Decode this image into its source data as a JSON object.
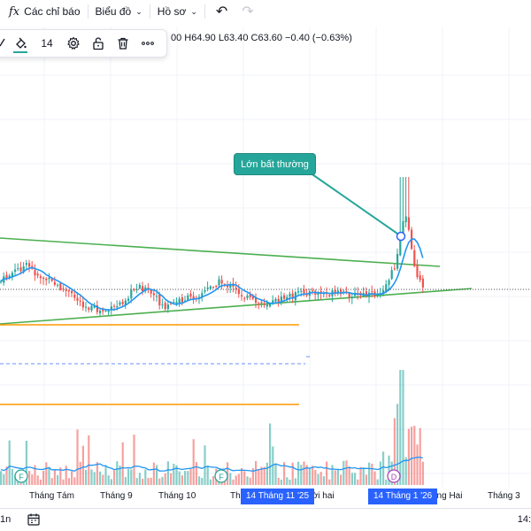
{
  "toolbar": {
    "indicators_icon": "fx",
    "indicators_label": "Các chỉ báo",
    "chart_label": "Biểu đồ",
    "profile_label": "Hồ sơ",
    "undo_icon": "undo-icon",
    "redo_icon": "redo-icon"
  },
  "drawing_toolbar": {
    "line_width": "14",
    "icons": [
      "pencil-icon",
      "paint-bucket-icon",
      "settings-icon",
      "unlock-icon",
      "trash-icon",
      "more-icon"
    ]
  },
  "ohlc": "00  H64.90  L63.40  C63.60  −0.40 (−0.63%)",
  "annotation": {
    "text": "Lớn bất thường"
  },
  "markers": {
    "earnings_1": "F",
    "earnings_2": "F",
    "dividend": "D"
  },
  "date_axis": {
    "labels": [
      "Tháng Tám",
      "Tháng 9",
      "Tháng 10",
      "Th",
      "ười hai",
      "áng Hai",
      "Tháng 3"
    ],
    "highlight_start": "14 Tháng 11 '25",
    "highlight_end": "14 Tháng 1 '26"
  },
  "bottom_bar": {
    "interval_fragment": "1n",
    "time_fragment": "14:"
  },
  "colors": {
    "up": "#26a69a",
    "down": "#ef5350",
    "trendline": "#4caf50",
    "ma": "#2196f3",
    "horizontal_line": "#ff9800",
    "accent": "#2962ff"
  },
  "chart_data": {
    "type": "candlestick",
    "last_bar": {
      "high": 64.9,
      "low": 63.4,
      "close": 63.6,
      "change": -0.4,
      "change_pct": -0.63
    }
  }
}
